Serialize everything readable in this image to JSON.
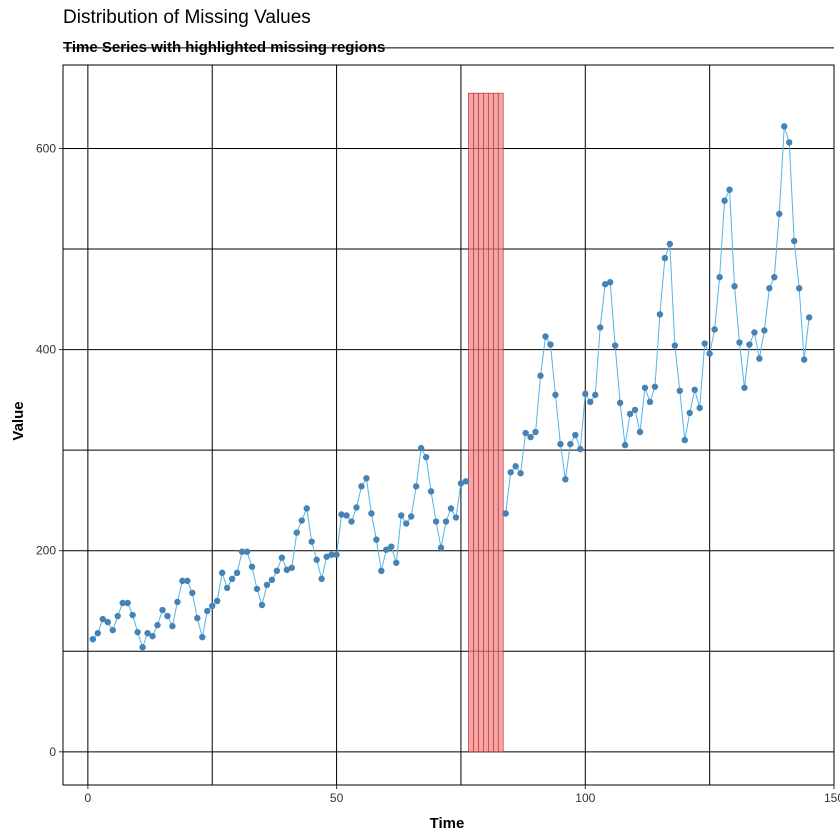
{
  "chart_data": {
    "type": "line",
    "title": "Distribution of Missing Values",
    "subtitle": "Time Series with highlighted missing regions",
    "xlabel": "Time",
    "ylabel": "Value",
    "xlim": [
      -5,
      150
    ],
    "ylim": [
      -33,
      683
    ],
    "x_ticks": [
      0,
      50,
      100,
      150
    ],
    "y_ticks": [
      0,
      200,
      400,
      600
    ],
    "grid": "on",
    "legend": "none",
    "series": [
      {
        "values": [
          112,
          118,
          132,
          129,
          121,
          135,
          148,
          148,
          136,
          119,
          104,
          118,
          115,
          126,
          141,
          135,
          125,
          149,
          170,
          170,
          158,
          133,
          114,
          140,
          145,
          150,
          178,
          163,
          172,
          178,
          199,
          199,
          184,
          162,
          146,
          166,
          171,
          180,
          193,
          181,
          183,
          218,
          230,
          242,
          209,
          191,
          172,
          194,
          196,
          196,
          236,
          235,
          229,
          243,
          264,
          272,
          237,
          211,
          180,
          201,
          204,
          188,
          235,
          227,
          234,
          264,
          302,
          293,
          259,
          229,
          203,
          229,
          242,
          233,
          267,
          269,
          null,
          null,
          null,
          null,
          null,
          null,
          null,
          237,
          278,
          284,
          277,
          317,
          313,
          318,
          374,
          413,
          405,
          355,
          306,
          271,
          306,
          315,
          301,
          356,
          348,
          355,
          422,
          465,
          467,
          404,
          347,
          305,
          336,
          340,
          318,
          362,
          348,
          363,
          435,
          491,
          505,
          404,
          359,
          310,
          337,
          360,
          342,
          406,
          396,
          420,
          472,
          548,
          559,
          463,
          407,
          362,
          405,
          417,
          391,
          419,
          461,
          472,
          535,
          622,
          606,
          508,
          461,
          390,
          432
        ]
      }
    ],
    "missing_region": {
      "x_start": 77,
      "x_end": 83
    },
    "colors": {
      "line": "#56B4E9",
      "point": "#4682B4",
      "missing_fill": "#F08080",
      "missing_stroke": "#B22222",
      "grid": "#000000",
      "tick_label": "#333333"
    }
  }
}
